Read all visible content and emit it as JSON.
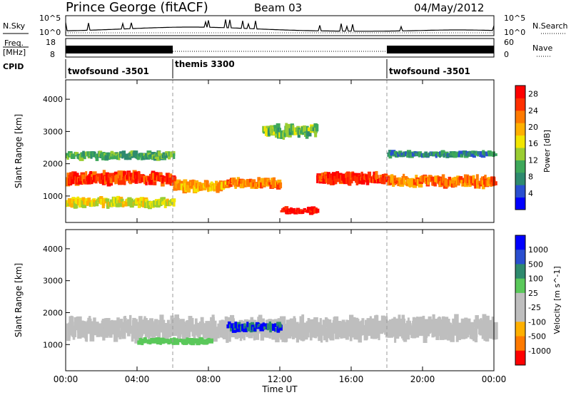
{
  "header": {
    "station": "Prince George (fitACF)",
    "beam": "Beam 03",
    "date": "04/May/2012"
  },
  "panels": {
    "nsky": {
      "label": "N.Sky",
      "ticks": [
        "10^5",
        "10^0"
      ],
      "right_ticks": [
        "10^5",
        "10^0"
      ],
      "right_label": "N.Search"
    },
    "freq": {
      "label_line1": "Freq.",
      "label_line2": "[MHz]",
      "ticks": [
        "18",
        "8"
      ],
      "right_ticks": [
        "60",
        "0"
      ],
      "right_label": "Nave"
    },
    "cpid": {
      "label": "CPID",
      "segments": [
        {
          "name": "twofsound -3501",
          "start_hour": 0,
          "end_hour": 6
        },
        {
          "name": "themis 3300",
          "start_hour": 6,
          "end_hour": 18
        },
        {
          "name": "twofsound -3501",
          "start_hour": 18,
          "end_hour": 24
        }
      ]
    }
  },
  "colors": {
    "power_scale": [
      "#0000ff",
      "#2a4fd0",
      "#2e8a6e",
      "#3ea85a",
      "#9acd32",
      "#f2e600",
      "#ffb000",
      "#ff7a00",
      "#ff3000",
      "#ff0000"
    ],
    "velocity_scale": [
      "#ff0000",
      "#ff7a00",
      "#ffb000",
      "#bebebe",
      "#bebebe",
      "#5ac85a",
      "#2e8a6e",
      "#2a4fd0",
      "#0000ff"
    ],
    "ground_scatter": "#bebebe"
  },
  "chart_data": [
    {
      "type": "heatmap",
      "name": "power",
      "ylabel": "Slant Range [km]",
      "x_range_hours": [
        0,
        24
      ],
      "ylim": [
        180,
        4600
      ],
      "y_ticks": [
        1000,
        2000,
        3000,
        4000
      ],
      "colorbar": {
        "label": "Power [dB]",
        "ticks": [
          4,
          8,
          12,
          16,
          20,
          24,
          28
        ],
        "range": [
          0,
          30
        ]
      },
      "bands": [
        {
          "t0": 0,
          "t1": 6,
          "range_center": 1550,
          "range_width": 380,
          "value": 26
        },
        {
          "t0": 0,
          "t1": 6,
          "range_center": 2250,
          "range_width": 250,
          "value": 10
        },
        {
          "t0": 0,
          "t1": 6,
          "range_center": 800,
          "range_width": 300,
          "value": 16
        },
        {
          "t0": 6,
          "t1": 9,
          "range_center": 1300,
          "range_width": 350,
          "value": 20
        },
        {
          "t0": 9,
          "t1": 12,
          "range_center": 1400,
          "range_width": 300,
          "value": 22
        },
        {
          "t0": 11,
          "t1": 14,
          "range_center": 3000,
          "range_width": 400,
          "value": 12
        },
        {
          "t0": 14,
          "t1": 18,
          "range_center": 1550,
          "range_width": 350,
          "value": 26
        },
        {
          "t0": 12,
          "t1": 14,
          "range_center": 550,
          "range_width": 200,
          "value": 28
        },
        {
          "t0": 18,
          "t1": 24,
          "range_center": 1450,
          "range_width": 350,
          "value": 22
        },
        {
          "t0": 18,
          "t1": 24,
          "range_center": 2300,
          "range_width": 200,
          "value": 8
        }
      ]
    },
    {
      "type": "heatmap",
      "name": "velocity",
      "ylabel": "Slant Range [km]",
      "xlabel": "Time UT",
      "x_ticks": [
        "00:00",
        "04:00",
        "08:00",
        "12:00",
        "16:00",
        "20:00",
        "00:00"
      ],
      "x_range_hours": [
        0,
        24
      ],
      "ylim": [
        180,
        4600
      ],
      "y_ticks": [
        1000,
        2000,
        3000,
        4000
      ],
      "colorbar": {
        "label": "Velocity [m s^-1]",
        "ticks": [
          1000,
          500,
          100,
          25,
          -25,
          -100,
          -500,
          -1000
        ]
      },
      "bands": [
        {
          "t0": 0,
          "t1": 24,
          "range_center": 1500,
          "range_width": 700,
          "value": 0
        },
        {
          "t0": 9,
          "t1": 12,
          "range_center": 1550,
          "range_width": 300,
          "value": 400
        },
        {
          "t0": 4,
          "t1": 8,
          "range_center": 1100,
          "range_width": 200,
          "value": 80
        }
      ]
    }
  ]
}
